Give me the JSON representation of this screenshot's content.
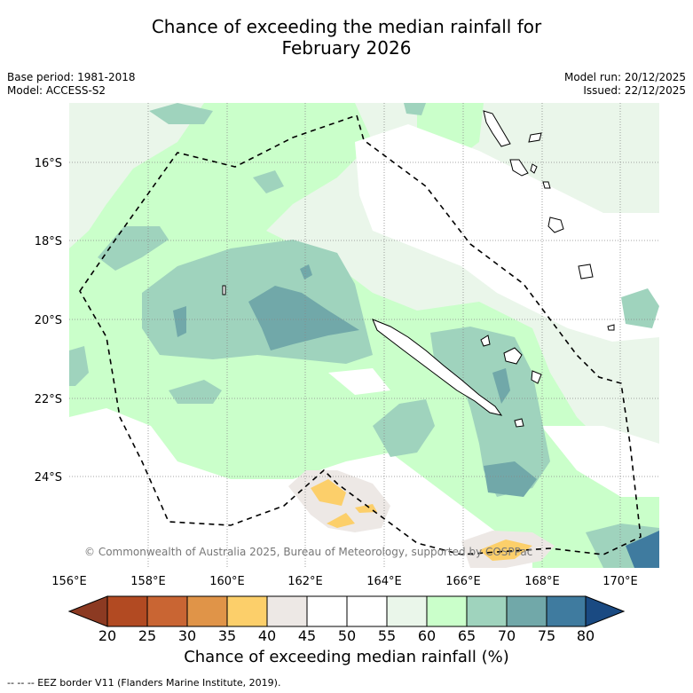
{
  "title": {
    "line1": "Chance of exceeding the median rainfall for",
    "line2": "February 2026"
  },
  "meta": {
    "base_period": "Base period: 1981-2018",
    "model": "Model: ACCESS-S2",
    "model_run": "Model run: 20/12/2025",
    "issued": "Issued: 22/12/2025"
  },
  "axes": {
    "lat_labels": [
      "16°S",
      "18°S",
      "20°S",
      "22°S",
      "24°S"
    ],
    "lon_labels": [
      "156°E",
      "158°E",
      "160°E",
      "162°E",
      "164°E",
      "166°E",
      "168°E",
      "170°E"
    ]
  },
  "watermark": "© Commonwealth of Australia 2025, Bureau of Meteorology, supported by COSPPac",
  "colorbar": {
    "title": "Chance of exceeding median rainfall (%)",
    "ticks": [
      "20",
      "25",
      "30",
      "35",
      "40",
      "45",
      "50",
      "55",
      "60",
      "65",
      "70",
      "75",
      "80"
    ],
    "colors": {
      "lt20": "#8c3a22",
      "c20_25": "#b24a22",
      "c25_30": "#c96533",
      "c30_35": "#e09448",
      "c35_40": "#fccf6a",
      "c40_45": "#ede8e5",
      "c45_50": "#ffffff",
      "c50_55": "#ffffff",
      "c55_60": "#eaf6ea",
      "c60_65": "#caffca",
      "c65_70": "#9fd3bd",
      "c70_75": "#71a8a9",
      "c75_80": "#3f7b9f",
      "gt80": "#1a4a82"
    }
  },
  "footer": "--  --  -- EEZ border V11 (Flanders Marine Institute, 2019)."
}
